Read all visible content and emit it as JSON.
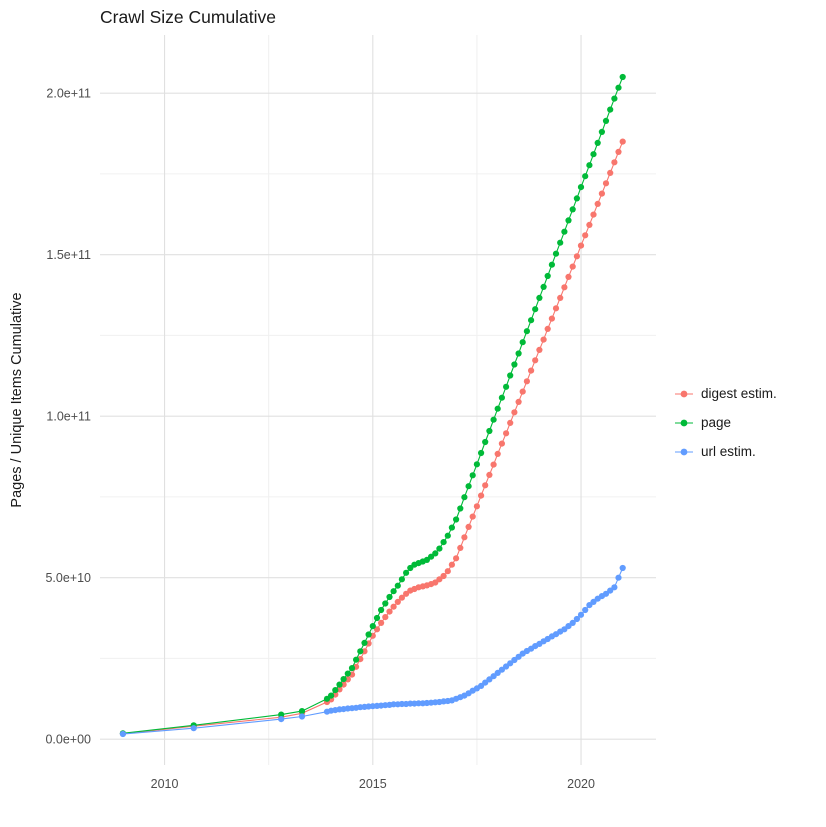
{
  "chart_data": {
    "type": "scatter",
    "title": "Crawl Size Cumulative",
    "xlabel": "",
    "ylabel": "Pages / Unique Items Cumulative",
    "legend_position": "right",
    "grid": "on",
    "y_multiplier": 1000000000.0,
    "y_unit": "values listed in billions (multiply by 1e9)",
    "xlim": [
      2008.45,
      2021.8
    ],
    "ylim_billions": [
      -8,
      218
    ],
    "x_ticks": [
      {
        "value": 2010,
        "label": "2010"
      },
      {
        "value": 2015,
        "label": "2015"
      },
      {
        "value": 2020,
        "label": "2020"
      }
    ],
    "y_ticks": [
      {
        "value": 0,
        "label": "0.0e+00"
      },
      {
        "value": 50,
        "label": "5.0e+10"
      },
      {
        "value": 100,
        "label": "1.0e+11"
      },
      {
        "value": 150,
        "label": "1.5e+11"
      },
      {
        "value": 200,
        "label": "2.0e+11"
      }
    ],
    "x_minor_ticks": [
      2012.5,
      2017.5
    ],
    "y_minor_ticks": [
      25,
      75,
      125,
      175
    ],
    "x": [
      2009.0,
      2010.7,
      2012.8,
      2013.3,
      2013.9,
      2014.0,
      2014.1,
      2014.2,
      2014.3,
      2014.4,
      2014.5,
      2014.6,
      2014.7,
      2014.8,
      2014.9,
      2015.0,
      2015.1,
      2015.2,
      2015.3,
      2015.4,
      2015.5,
      2015.6,
      2015.7,
      2015.8,
      2015.9,
      2016.0,
      2016.1,
      2016.2,
      2016.3,
      2016.4,
      2016.5,
      2016.6,
      2016.7,
      2016.8,
      2016.9,
      2017.0,
      2017.1,
      2017.2,
      2017.3,
      2017.4,
      2017.5,
      2017.6,
      2017.7,
      2017.8,
      2017.9,
      2018.0,
      2018.1,
      2018.2,
      2018.3,
      2018.4,
      2018.5,
      2018.6,
      2018.7,
      2018.8,
      2018.9,
      2019.0,
      2019.1,
      2019.2,
      2019.3,
      2019.4,
      2019.5,
      2019.6,
      2019.7,
      2019.8,
      2019.9,
      2020.0,
      2020.1,
      2020.2,
      2020.3,
      2020.4,
      2020.5,
      2020.6,
      2020.7,
      2020.8,
      2020.9,
      2021.0
    ],
    "series": [
      {
        "name": "digest estim.",
        "color": "#F8766D",
        "values": [
          1.7,
          4.0,
          6.8,
          8.0,
          11.5,
          12.3,
          13.8,
          15.4,
          16.9,
          18.5,
          20.0,
          22.4,
          24.8,
          27.2,
          29.6,
          32.0,
          34.0,
          36.0,
          37.8,
          39.5,
          41.0,
          42.5,
          43.8,
          45.0,
          46.0,
          46.5,
          47.0,
          47.3,
          47.6,
          48.0,
          48.5,
          49.5,
          50.5,
          52.0,
          54.0,
          56.0,
          59.2,
          62.5,
          65.7,
          68.9,
          72.1,
          75.4,
          78.6,
          81.8,
          85.0,
          88.3,
          91.5,
          94.7,
          97.9,
          101.2,
          104.4,
          107.6,
          110.8,
          114.1,
          117.3,
          120.5,
          123.7,
          127.0,
          130.2,
          133.4,
          136.6,
          139.9,
          143.1,
          146.3,
          149.5,
          152.8,
          156.0,
          159.2,
          162.4,
          165.7,
          168.9,
          172.1,
          175.3,
          178.6,
          181.8,
          185.0
        ]
      },
      {
        "name": "page",
        "color": "#00BA38",
        "values": [
          1.8,
          4.3,
          7.6,
          8.7,
          12.5,
          13.5,
          15.2,
          16.9,
          18.6,
          20.3,
          22.0,
          24.6,
          27.2,
          29.8,
          32.4,
          35.0,
          37.5,
          40.0,
          42.0,
          44.0,
          45.8,
          47.5,
          49.5,
          51.5,
          53.0,
          54.0,
          54.5,
          55.0,
          55.5,
          56.5,
          57.5,
          59.0,
          61.0,
          63.0,
          65.5,
          68.0,
          71.4,
          74.9,
          78.3,
          81.7,
          85.1,
          88.6,
          92.0,
          95.4,
          98.9,
          102.3,
          105.7,
          109.1,
          112.6,
          116.0,
          119.4,
          122.9,
          126.3,
          129.7,
          133.1,
          136.6,
          140.0,
          143.4,
          146.9,
          150.3,
          153.7,
          157.1,
          160.6,
          164.0,
          167.4,
          170.9,
          174.3,
          177.7,
          181.1,
          184.6,
          188.0,
          191.4,
          194.9,
          198.3,
          201.7,
          205.0
        ]
      },
      {
        "name": "url estim.",
        "color": "#619CFF",
        "values": [
          1.6,
          3.4,
          6.2,
          7.0,
          8.5,
          8.8,
          9.0,
          9.2,
          9.3,
          9.5,
          9.6,
          9.7,
          9.9,
          10.0,
          10.1,
          10.2,
          10.3,
          10.4,
          10.5,
          10.6,
          10.8,
          10.8,
          10.9,
          10.9,
          11.0,
          11.0,
          11.1,
          11.1,
          11.2,
          11.3,
          11.4,
          11.5,
          11.7,
          11.8,
          12.0,
          12.5,
          13.0,
          13.5,
          14.2,
          15.0,
          15.7,
          16.5,
          17.5,
          18.5,
          19.5,
          20.5,
          21.5,
          22.5,
          23.5,
          24.5,
          25.5,
          26.5,
          27.3,
          28.0,
          28.8,
          29.5,
          30.3,
          31.0,
          31.8,
          32.5,
          33.3,
          34.0,
          35.0,
          36.0,
          37.2,
          38.5,
          40.0,
          41.5,
          42.5,
          43.5,
          44.3,
          45.0,
          46.0,
          47.0,
          50.0,
          53.0
        ]
      }
    ]
  }
}
